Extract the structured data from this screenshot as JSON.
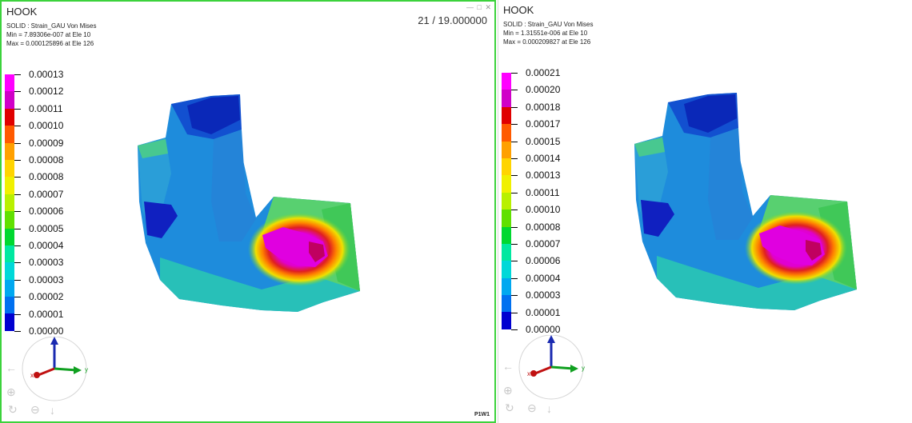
{
  "colors": {
    "active_border": "#3cd23c",
    "legend": [
      "#ff00ff",
      "#d000c8",
      "#e00000",
      "#ff5a00",
      "#ffa000",
      "#ffd400",
      "#f0f000",
      "#b8f000",
      "#60e000",
      "#00d830",
      "#00e8a0",
      "#00d8d8",
      "#00a8f0",
      "#0070f0",
      "#0000d0"
    ]
  },
  "viewports": {
    "left": {
      "title": "HOOK",
      "info": [
        "SOLID : Strain_GAU Von Mises",
        "Min = 7.89306e-007  at Ele 10",
        "Max = 0.000125896  at Ele 126"
      ],
      "frame": "21 / 19.000000",
      "page_tag": "P1W1",
      "legend_labels": [
        "0.00013",
        "0.00012",
        "0.00011",
        "0.00010",
        "0.00009",
        "0.00008",
        "0.00008",
        "0.00007",
        "0.00006",
        "0.00005",
        "0.00004",
        "0.00003",
        "0.00003",
        "0.00002",
        "0.00001",
        "0.00000"
      ]
    },
    "right": {
      "title": "HOOK",
      "info": [
        "SOLID : Strain_GAU Von Mises",
        "Min = 1.31551e-006  at Ele 10",
        "Max = 0.000209827  at Ele 126"
      ],
      "legend_labels": [
        "0.00021",
        "0.00020",
        "0.00018",
        "0.00017",
        "0.00015",
        "0.00014",
        "0.00013",
        "0.00011",
        "0.00010",
        "0.00008",
        "0.00007",
        "0.00006",
        "0.00004",
        "0.00003",
        "0.00001",
        "0.00000"
      ]
    }
  },
  "triad": {
    "x": "x",
    "y": "y",
    "z": "z"
  },
  "icons": {
    "minimize": "minimize-icon",
    "maximize": "maximize-icon",
    "close": "close-icon",
    "zoom": "zoom-in-icon",
    "rotate": "rotate-icon",
    "zoom_out": "zoom-out-icon",
    "pan_left": "arrow-left-icon",
    "pan_down": "arrow-down-icon"
  }
}
